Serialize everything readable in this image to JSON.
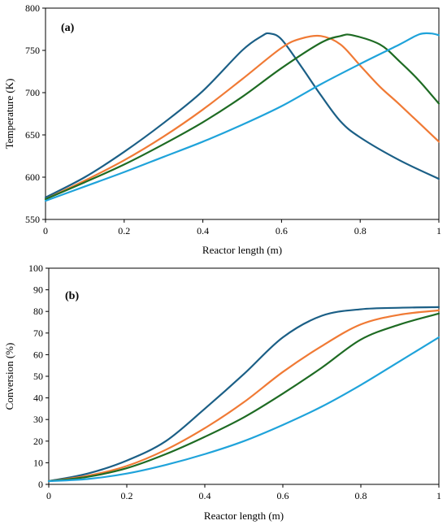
{
  "chart_data": [
    {
      "type": "line",
      "panel_label": "(a)",
      "xlabel": "Reactor length (m)",
      "ylabel": "Temperature (K)",
      "xlim": [
        0,
        1
      ],
      "ylim": [
        550,
        800
      ],
      "x_ticks": [
        0,
        0.2,
        0.4,
        0.6,
        0.8,
        1
      ],
      "x_tick_labels": [
        "0",
        "0.2",
        "0.4",
        "0.6",
        "0.8",
        "1"
      ],
      "y_ticks": [
        550,
        600,
        650,
        700,
        750,
        800
      ],
      "y_tick_labels": [
        "550",
        "600",
        "650",
        "700",
        "750",
        "800"
      ],
      "grid": false,
      "legend": "none",
      "series": [
        {
          "color": "#1b5f86",
          "x": [
            0,
            0.1,
            0.2,
            0.3,
            0.4,
            0.5,
            0.55,
            0.57,
            0.6,
            0.65,
            0.7,
            0.75,
            0.8,
            0.9,
            1.0
          ],
          "y": [
            576,
            600,
            630,
            664,
            702,
            750,
            767,
            770,
            763,
            731,
            697,
            666,
            647,
            620,
            598
          ]
        },
        {
          "color": "#f07a35",
          "x": [
            0,
            0.1,
            0.2,
            0.3,
            0.4,
            0.5,
            0.6,
            0.65,
            0.7,
            0.75,
            0.8,
            0.85,
            0.9,
            1.0
          ],
          "y": [
            574,
            596,
            620,
            648,
            680,
            716,
            753,
            764,
            767,
            757,
            732,
            707,
            686,
            642
          ]
        },
        {
          "color": "#1e6b23",
          "x": [
            0,
            0.1,
            0.2,
            0.3,
            0.4,
            0.5,
            0.6,
            0.7,
            0.75,
            0.78,
            0.85,
            0.9,
            0.95,
            1.0
          ],
          "y": [
            574,
            594,
            615,
            639,
            665,
            695,
            729,
            759,
            767,
            768,
            757,
            737,
            714,
            687
          ]
        },
        {
          "color": "#1fa3da",
          "x": [
            0,
            0.1,
            0.2,
            0.3,
            0.4,
            0.5,
            0.6,
            0.7,
            0.8,
            0.9,
            0.95,
            0.98,
            1.0
          ],
          "y": [
            572,
            589,
            606,
            624,
            642,
            662,
            684,
            710,
            734,
            757,
            769,
            770,
            768
          ]
        }
      ]
    },
    {
      "type": "line",
      "panel_label": "(b)",
      "xlabel": "Reactor length (m)",
      "ylabel": "Conversion (%)",
      "xlim": [
        0,
        1
      ],
      "ylim": [
        0,
        100
      ],
      "x_ticks": [
        0,
        0.2,
        0.4,
        0.6,
        0.8,
        1
      ],
      "x_tick_labels": [
        "0",
        "0.2",
        "0.4",
        "0.6",
        "0.8",
        "1"
      ],
      "y_ticks": [
        0,
        10,
        20,
        30,
        40,
        50,
        60,
        70,
        80,
        90,
        100
      ],
      "y_tick_labels": [
        "0",
        "10",
        "20",
        "30",
        "40",
        "50",
        "60",
        "70",
        "80",
        "90",
        "100"
      ],
      "grid": false,
      "legend": "none",
      "series": [
        {
          "color": "#1b5f86",
          "x": [
            0,
            0.1,
            0.2,
            0.3,
            0.4,
            0.5,
            0.6,
            0.7,
            0.8,
            0.9,
            1.0
          ],
          "y": [
            1.5,
            5,
            11,
            20,
            35,
            51,
            68,
            78,
            81,
            81.7,
            82
          ]
        },
        {
          "color": "#f07a35",
          "x": [
            0,
            0.1,
            0.2,
            0.3,
            0.4,
            0.5,
            0.6,
            0.7,
            0.8,
            0.9,
            1.0
          ],
          "y": [
            1.5,
            4,
            8.5,
            16,
            26,
            38,
            52,
            64,
            74,
            78.5,
            80.5
          ]
        },
        {
          "color": "#1e6b23",
          "x": [
            0,
            0.1,
            0.2,
            0.3,
            0.4,
            0.5,
            0.6,
            0.7,
            0.8,
            0.9,
            1.0
          ],
          "y": [
            1.5,
            3.5,
            7.5,
            14,
            22,
            31,
            42,
            54,
            67,
            74,
            79
          ]
        },
        {
          "color": "#1fa3da",
          "x": [
            0,
            0.1,
            0.2,
            0.3,
            0.4,
            0.5,
            0.6,
            0.7,
            0.8,
            0.9,
            1.0
          ],
          "y": [
            1.5,
            2.5,
            5,
            9,
            14,
            20,
            27.5,
            36,
            46,
            57,
            68
          ]
        }
      ]
    }
  ]
}
